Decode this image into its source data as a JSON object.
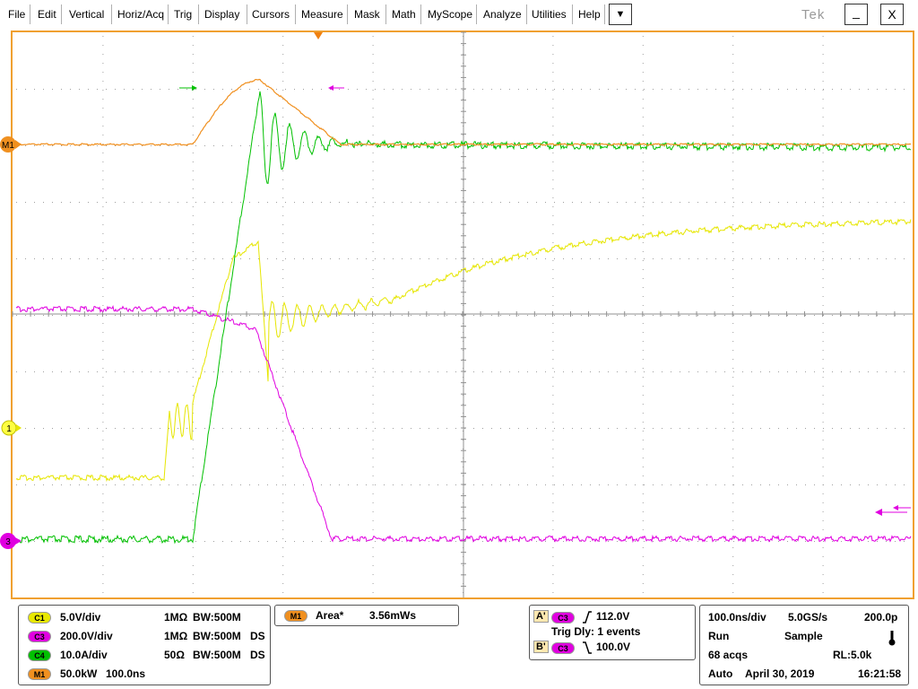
{
  "menu": {
    "items": [
      "File",
      "Edit",
      "Vertical",
      "Horiz/Acq",
      "Trig",
      "Display",
      "Cursors",
      "Measure",
      "Mask",
      "Math",
      "MyScope",
      "Analyze",
      "Utilities",
      "Help"
    ],
    "dropdown_glyph": "▼",
    "logo": "Tek",
    "minimize_glyph": "_",
    "close_glyph": "X"
  },
  "markers": {
    "m1": "M1",
    "ch1": "1",
    "ch3": "3"
  },
  "colors": {
    "ch1": "#e8e800",
    "ch3": "#e000e0",
    "ch4": "#00c000",
    "m1": "#f09020",
    "frame": "#f0a030"
  },
  "channels": [
    {
      "badge": "C1",
      "scale": "5.0V/div",
      "coupling": "1MΩ",
      "bw_label": "BW:500M",
      "ds": ""
    },
    {
      "badge": "C3",
      "scale": "200.0V/div",
      "coupling": "1MΩ",
      "bw_label": "BW:500M",
      "ds": "DS"
    },
    {
      "badge": "C4",
      "scale": "10.0A/div",
      "coupling": "50Ω",
      "bw_label": "BW:500M",
      "ds": "DS"
    },
    {
      "badge": "M1",
      "scale": "50.0kW",
      "coupling": "100.0ns",
      "bw_label": "",
      "ds": ""
    }
  ],
  "measurement": {
    "badge": "M1",
    "name": "Area*",
    "value": "3.56mWs"
  },
  "trigger": {
    "a_label": "A'",
    "a_badge": "C3",
    "a_value": "112.0V",
    "delay": "Trig Dly: 1 events",
    "b_label": "B'",
    "b_badge": "C3",
    "b_value": "100.0V"
  },
  "acquisition": {
    "timebase": "100.0ns/div",
    "sample_rate": "5.0GS/s",
    "resolution": "200.0p",
    "run_state": "Run",
    "mode": "Sample",
    "acqs": "68 acqs",
    "record_length": "RL:5.0k",
    "trigger_mode": "Auto",
    "date": "April 30, 2019",
    "time": "16:21:58"
  }
}
